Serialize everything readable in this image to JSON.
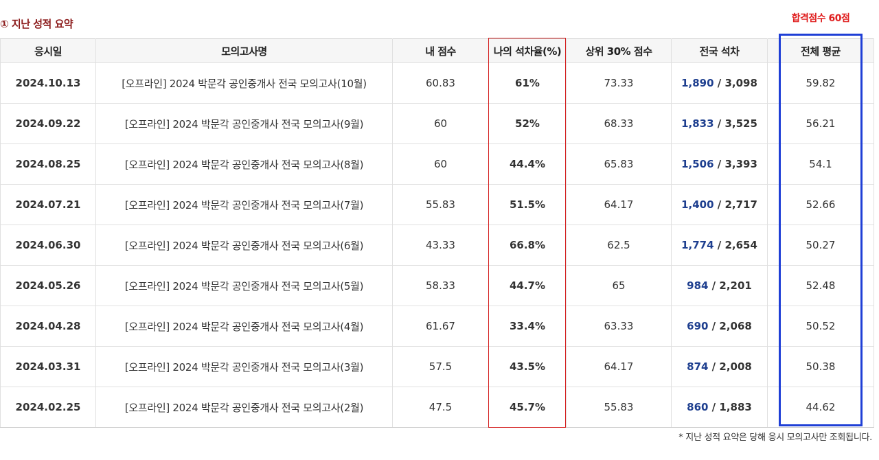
{
  "section_title": "① 지난 성적 요약",
  "pass_note": "합격점수 60점",
  "table": {
    "headers": [
      "응시일",
      "모의고사명",
      "내 점수",
      "나의 석차율(%)",
      "상위 30% 점수",
      "전국 석차",
      "전체 평균"
    ],
    "rows": [
      {
        "date": "2024.10.13",
        "exam": "[오프라인]  2024 박문각 공인중개사 전국 모의고사(10월)",
        "my_score": "60.83",
        "ratio": "61%",
        "top30": "73.33",
        "rank_mine": "1,890",
        "rank_total": "3,098",
        "average": "59.82"
      },
      {
        "date": "2024.09.22",
        "exam": "[오프라인]  2024 박문각 공인중개사 전국 모의고사(9월)",
        "my_score": "60",
        "ratio": "52%",
        "top30": "68.33",
        "rank_mine": "1,833",
        "rank_total": "3,525",
        "average": "56.21"
      },
      {
        "date": "2024.08.25",
        "exam": "[오프라인]  2024 박문각 공인중개사 전국 모의고사(8월)",
        "my_score": "60",
        "ratio": "44.4%",
        "top30": "65.83",
        "rank_mine": "1,506",
        "rank_total": "3,393",
        "average": "54.1"
      },
      {
        "date": "2024.07.21",
        "exam": "[오프라인]  2024 박문각 공인중개사 전국 모의고사(7월)",
        "my_score": "55.83",
        "ratio": "51.5%",
        "top30": "64.17",
        "rank_mine": "1,400",
        "rank_total": "2,717",
        "average": "52.66"
      },
      {
        "date": "2024.06.30",
        "exam": "[오프라인]  2024 박문각 공인중개사 전국 모의고사(6월)",
        "my_score": "43.33",
        "ratio": "66.8%",
        "top30": "62.5",
        "rank_mine": "1,774",
        "rank_total": "2,654",
        "average": "50.27"
      },
      {
        "date": "2024.05.26",
        "exam": "[오프라인]  2024 박문각 공인중개사 전국 모의고사(5월)",
        "my_score": "58.33",
        "ratio": "44.7%",
        "top30": "65",
        "rank_mine": "984",
        "rank_total": "2,201",
        "average": "52.48"
      },
      {
        "date": "2024.04.28",
        "exam": "[오프라인]  2024 박문각 공인중개사 전국 모의고사(4월)",
        "my_score": "61.67",
        "ratio": "33.4%",
        "top30": "63.33",
        "rank_mine": "690",
        "rank_total": "2,068",
        "average": "50.52"
      },
      {
        "date": "2024.03.31",
        "exam": "[오프라인]  2024 박문각 공인중개사 전국 모의고사(3월)",
        "my_score": "57.5",
        "ratio": "43.5%",
        "top30": "64.17",
        "rank_mine": "874",
        "rank_total": "2,008",
        "average": "50.38"
      },
      {
        "date": "2024.02.25",
        "exam": "[오프라인]  2024 박문각 공인중개사 전국 모의고사(2월)",
        "my_score": "47.5",
        "ratio": "45.7%",
        "top30": "55.83",
        "rank_mine": "860",
        "rank_total": "1,883",
        "average": "44.62"
      }
    ]
  },
  "footnote": "* 지난 성적 요약은 당해 응시 모의고사만 조회됩니다.",
  "colors": {
    "title": "#8b1a1a",
    "pass_note": "#e02020",
    "highlight_red": "#d42020",
    "highlight_blue": "#1f3fd6",
    "rank_mine": "#1e3f8f",
    "header_bg": "#f6f6f6"
  }
}
